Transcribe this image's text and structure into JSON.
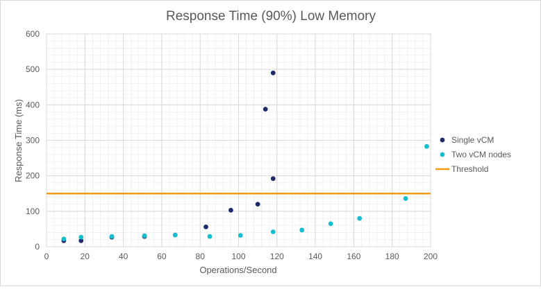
{
  "chart_data": {
    "type": "scatter",
    "title": "Response Time (90%) Low Memory",
    "xlabel": "Operations/Second",
    "ylabel": "Response Time (ms)",
    "xlim": [
      0,
      200
    ],
    "ylim": [
      0,
      600
    ],
    "x_ticks": [
      0,
      20,
      40,
      60,
      80,
      100,
      120,
      140,
      160,
      180,
      200
    ],
    "y_ticks": [
      0,
      100,
      200,
      300,
      400,
      500,
      600
    ],
    "x_minor_step": 4,
    "y_minor_step": 20,
    "grid": true,
    "legend_position": "right",
    "series": [
      {
        "name": "Single vCM",
        "color": "#1f2a6b",
        "points": [
          {
            "x": 9,
            "y": 17
          },
          {
            "x": 18,
            "y": 17
          },
          {
            "x": 34,
            "y": 27
          },
          {
            "x": 51,
            "y": 29
          },
          {
            "x": 67,
            "y": 33
          },
          {
            "x": 83,
            "y": 56
          },
          {
            "x": 96,
            "y": 103
          },
          {
            "x": 110,
            "y": 120
          },
          {
            "x": 114,
            "y": 388
          },
          {
            "x": 118,
            "y": 192
          },
          {
            "x": 118,
            "y": 490
          }
        ]
      },
      {
        "name": "Two vCM nodes",
        "color": "#17becf",
        "points": [
          {
            "x": 9,
            "y": 22
          },
          {
            "x": 18,
            "y": 27
          },
          {
            "x": 34,
            "y": 29
          },
          {
            "x": 51,
            "y": 31
          },
          {
            "x": 67,
            "y": 33
          },
          {
            "x": 85,
            "y": 29
          },
          {
            "x": 101,
            "y": 32
          },
          {
            "x": 118,
            "y": 42
          },
          {
            "x": 133,
            "y": 47
          },
          {
            "x": 148,
            "y": 65
          },
          {
            "x": 163,
            "y": 80
          },
          {
            "x": 187,
            "y": 136
          },
          {
            "x": 198,
            "y": 283
          }
        ]
      }
    ],
    "threshold": {
      "name": "Threshold",
      "value": 150,
      "color": "#f39c12"
    }
  }
}
